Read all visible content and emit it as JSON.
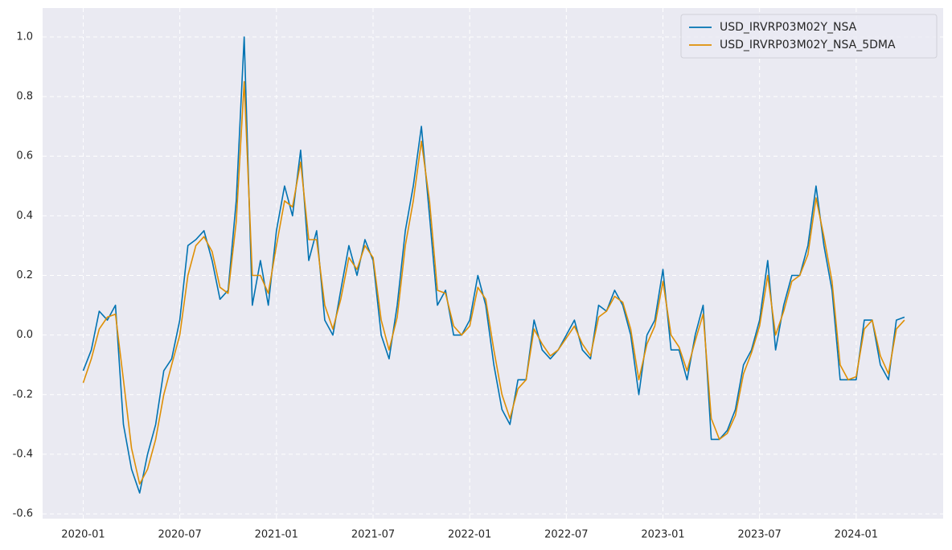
{
  "chart_data": {
    "type": "line",
    "x": [
      2020.0,
      2020.042,
      2020.083,
      2020.125,
      2020.167,
      2020.208,
      2020.25,
      2020.292,
      2020.333,
      2020.375,
      2020.417,
      2020.458,
      2020.5,
      2020.542,
      2020.583,
      2020.625,
      2020.667,
      2020.708,
      2020.75,
      2020.792,
      2020.833,
      2020.875,
      2020.917,
      2020.958,
      2021.0,
      2021.042,
      2021.083,
      2021.125,
      2021.167,
      2021.208,
      2021.25,
      2021.292,
      2021.333,
      2021.375,
      2021.417,
      2021.458,
      2021.5,
      2021.542,
      2021.583,
      2021.625,
      2021.667,
      2021.708,
      2021.75,
      2021.792,
      2021.833,
      2021.875,
      2021.917,
      2021.958,
      2022.0,
      2022.042,
      2022.083,
      2022.125,
      2022.167,
      2022.208,
      2022.25,
      2022.292,
      2022.333,
      2022.375,
      2022.417,
      2022.458,
      2022.5,
      2022.542,
      2022.583,
      2022.625,
      2022.667,
      2022.708,
      2022.75,
      2022.792,
      2022.833,
      2022.875,
      2022.917,
      2022.958,
      2023.0,
      2023.042,
      2023.083,
      2023.125,
      2023.167,
      2023.208,
      2023.25,
      2023.292,
      2023.333,
      2023.375,
      2023.417,
      2023.458,
      2023.5,
      2023.542,
      2023.583,
      2023.625,
      2023.667,
      2023.708,
      2023.75,
      2023.792,
      2023.833,
      2023.875,
      2023.917,
      2023.958,
      2024.0,
      2024.042,
      2024.083,
      2024.125,
      2024.167,
      2024.208,
      2024.25
    ],
    "series": [
      {
        "name": "USD_IRVRP03M02Y_NSA",
        "color": "#0173b2",
        "values": [
          -0.12,
          -0.05,
          0.08,
          0.05,
          0.1,
          -0.3,
          -0.45,
          -0.53,
          -0.4,
          -0.3,
          -0.12,
          -0.08,
          0.05,
          0.3,
          0.32,
          0.35,
          0.25,
          0.12,
          0.15,
          0.45,
          1.0,
          0.1,
          0.25,
          0.1,
          0.35,
          0.5,
          0.4,
          0.62,
          0.25,
          0.35,
          0.05,
          0.0,
          0.15,
          0.3,
          0.2,
          0.32,
          0.25,
          0.0,
          -0.08,
          0.1,
          0.35,
          0.5,
          0.7,
          0.4,
          0.1,
          0.15,
          0.0,
          0.0,
          0.05,
          0.2,
          0.1,
          -0.1,
          -0.25,
          -0.3,
          -0.15,
          -0.15,
          0.05,
          -0.05,
          -0.08,
          -0.05,
          0.0,
          0.05,
          -0.05,
          -0.08,
          0.1,
          0.08,
          0.15,
          0.1,
          0.0,
          -0.2,
          0.0,
          0.05,
          0.22,
          -0.05,
          -0.05,
          -0.15,
          0.0,
          0.1,
          -0.35,
          -0.35,
          -0.32,
          -0.25,
          -0.1,
          -0.05,
          0.05,
          0.25,
          -0.05,
          0.1,
          0.2,
          0.2,
          0.3,
          0.5,
          0.3,
          0.15,
          -0.15,
          -0.15,
          -0.15,
          0.05,
          0.05,
          -0.1,
          -0.15,
          0.05,
          0.06
        ]
      },
      {
        "name": "USD_IRVRP03M02Y_NSA_5DMA",
        "color": "#de8f05",
        "values": [
          -0.16,
          -0.08,
          0.02,
          0.06,
          0.07,
          -0.15,
          -0.38,
          -0.5,
          -0.45,
          -0.35,
          -0.2,
          -0.1,
          0.0,
          0.2,
          0.3,
          0.33,
          0.28,
          0.16,
          0.14,
          0.38,
          0.85,
          0.2,
          0.2,
          0.14,
          0.3,
          0.45,
          0.43,
          0.58,
          0.32,
          0.32,
          0.1,
          0.02,
          0.12,
          0.26,
          0.22,
          0.3,
          0.26,
          0.05,
          -0.05,
          0.06,
          0.3,
          0.45,
          0.65,
          0.45,
          0.15,
          0.14,
          0.03,
          0.0,
          0.03,
          0.16,
          0.12,
          -0.05,
          -0.2,
          -0.28,
          -0.18,
          -0.15,
          0.02,
          -0.03,
          -0.07,
          -0.05,
          -0.01,
          0.03,
          -0.03,
          -0.07,
          0.06,
          0.08,
          0.13,
          0.11,
          0.02,
          -0.15,
          -0.03,
          0.03,
          0.18,
          0.0,
          -0.04,
          -0.12,
          -0.02,
          0.07,
          -0.28,
          -0.35,
          -0.33,
          -0.27,
          -0.13,
          -0.06,
          0.03,
          0.2,
          0.0,
          0.08,
          0.18,
          0.2,
          0.27,
          0.46,
          0.33,
          0.18,
          -0.1,
          -0.15,
          -0.14,
          0.02,
          0.05,
          -0.07,
          -0.13,
          0.02,
          0.05
        ]
      }
    ],
    "xlim": [
      2019.79,
      2024.45
    ],
    "xticks": [
      {
        "value": 2020.0,
        "label": "2020-01"
      },
      {
        "value": 2020.5,
        "label": "2020-07"
      },
      {
        "value": 2021.0,
        "label": "2021-01"
      },
      {
        "value": 2021.5,
        "label": "2021-07"
      },
      {
        "value": 2022.0,
        "label": "2022-01"
      },
      {
        "value": 2022.5,
        "label": "2022-07"
      },
      {
        "value": 2023.0,
        "label": "2023-01"
      },
      {
        "value": 2023.5,
        "label": "2023-07"
      },
      {
        "value": 2024.0,
        "label": "2024-01"
      }
    ],
    "ylim": [
      -0.616,
      1.097
    ],
    "yticks": [
      -0.6,
      -0.4,
      -0.2,
      {
        "value": 0,
        "label": "0.0"
      },
      0.2,
      0.4,
      0.6,
      0.8,
      {
        "value": 1,
        "label": "1.0"
      }
    ],
    "grid": true,
    "legend": "upper right"
  }
}
